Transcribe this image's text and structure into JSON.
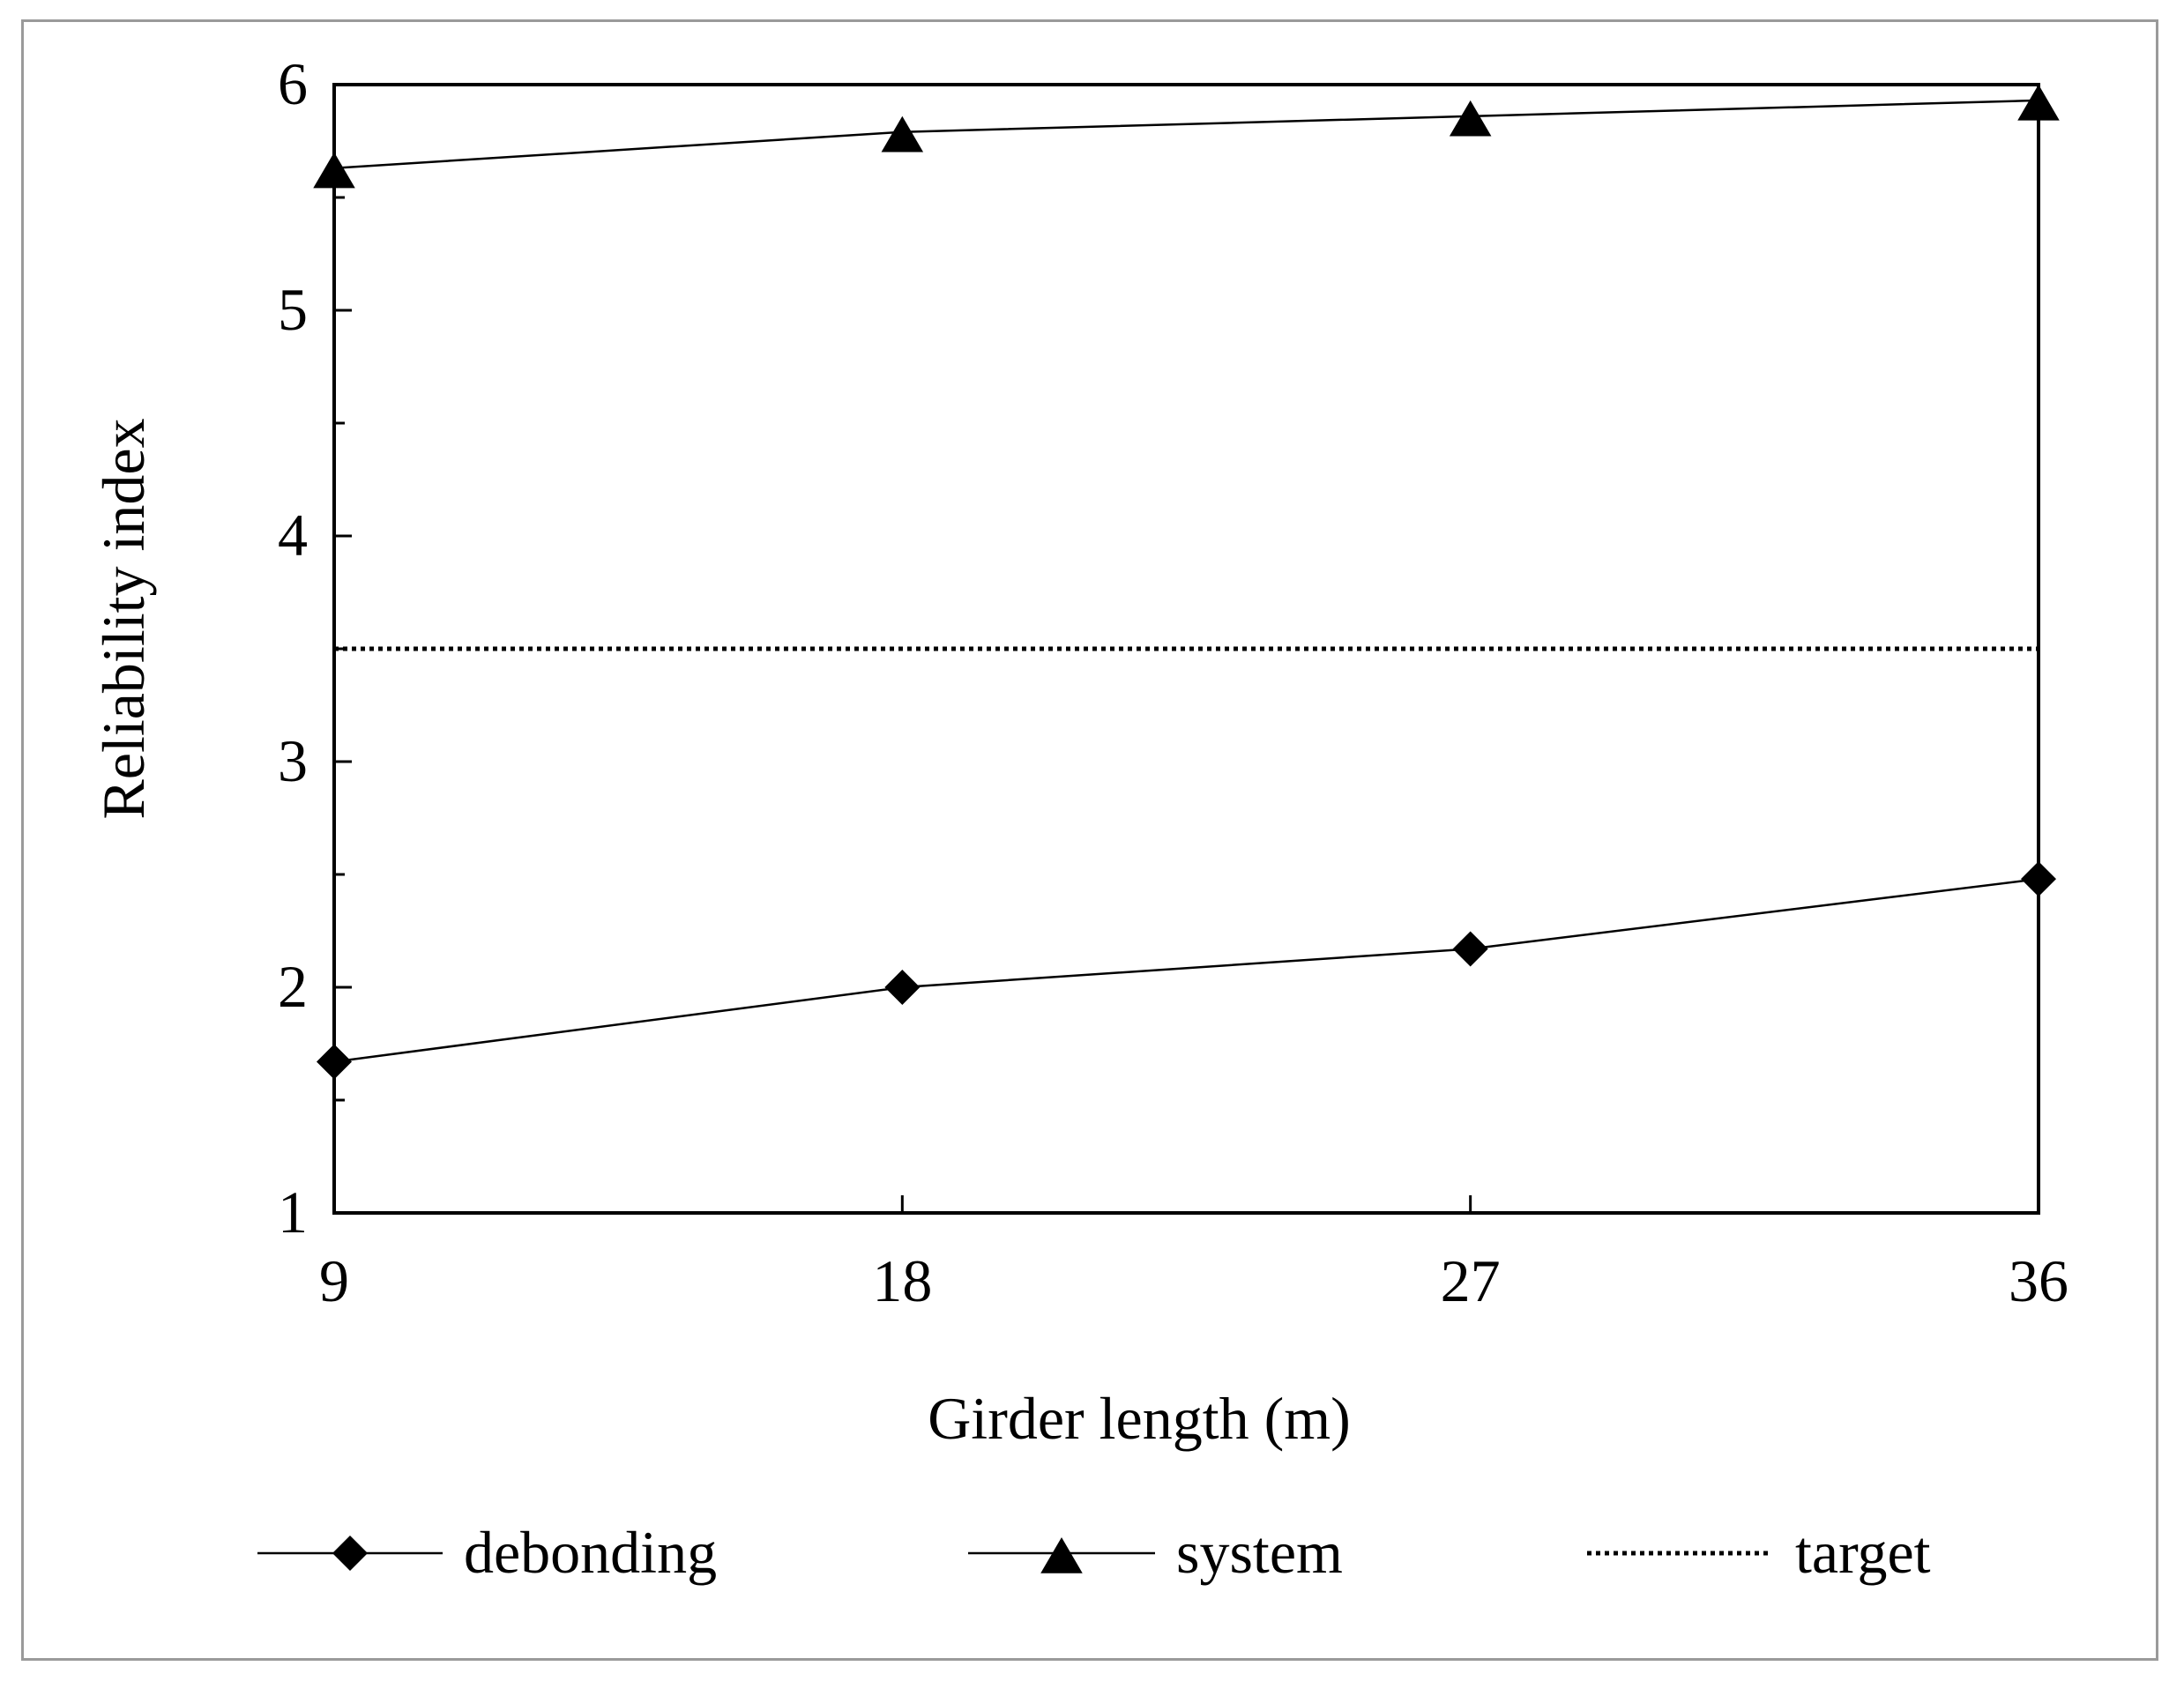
{
  "chart_data": {
    "type": "line",
    "title": "",
    "xlabel": "Girder length (m)",
    "ylabel": "Reliability index",
    "x": [
      9,
      18,
      27,
      36
    ],
    "x_tick_labels": [
      "9",
      "18",
      "27",
      "36"
    ],
    "xlim": [
      9,
      36
    ],
    "ylim": [
      1,
      6
    ],
    "y_ticks": [
      1,
      2,
      3,
      4,
      5,
      6
    ],
    "y_tick_labels": [
      "1",
      "2",
      "3",
      "4",
      "5",
      "6"
    ],
    "y_minor_ticks": [
      1.5,
      2.5,
      3.5,
      4.5,
      5.5
    ],
    "grid": false,
    "legend_position": "bottom",
    "series": [
      {
        "name": "debonding",
        "marker": "diamond",
        "line_style": "solid",
        "values": [
          1.67,
          2.0,
          2.17,
          2.48
        ]
      },
      {
        "name": "system",
        "marker": "triangle",
        "line_style": "solid",
        "values": [
          5.63,
          5.79,
          5.86,
          5.93
        ]
      },
      {
        "name": "target",
        "marker": "none",
        "line_style": "dotted",
        "values": [
          3.5,
          3.5,
          3.5,
          3.5
        ]
      }
    ],
    "colors": {
      "line": "#000000",
      "frame_border": "#9a9a9a"
    }
  }
}
